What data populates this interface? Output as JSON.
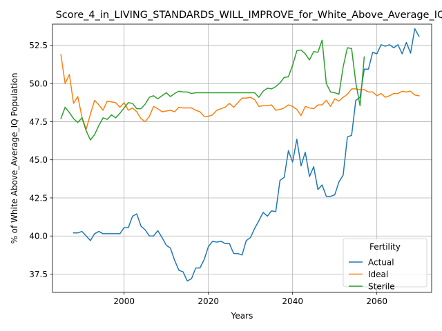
{
  "chart_data": {
    "type": "line",
    "title": "Score_4_in_LIVING_STANDARDS_WILL_IMPROVE_for_White_Above_Average_IQ",
    "xlabel": "Years",
    "ylabel": "% of White Above_Average_IQ Population",
    "xlim": [
      1983,
      2073
    ],
    "ylim": [
      36.3,
      53.9
    ],
    "xticks": [
      2000,
      2020,
      2040,
      2060
    ],
    "yticks": [
      37.5,
      40.0,
      42.5,
      45.0,
      47.5,
      50.0,
      52.5
    ],
    "xtick_labels": [
      "2000",
      "2020",
      "2040",
      "2060"
    ],
    "ytick_labels": [
      "37.5",
      "40.0",
      "42.5",
      "45.0",
      "47.5",
      "50.0",
      "52.5"
    ],
    "grid": true,
    "legend": {
      "title": "Fertility",
      "placement": "lower-right"
    },
    "series": [
      {
        "name": "Actual",
        "color": "#1f77b4",
        "x": [
          1988,
          1989,
          1990,
          1991,
          1992,
          1993,
          1994,
          1995,
          1996,
          1997,
          1998,
          1999,
          2000,
          2001,
          2002,
          2003,
          2004,
          2005,
          2006,
          2007,
          2008,
          2009,
          2010,
          2011,
          2012,
          2013,
          2014,
          2015,
          2016,
          2017,
          2018,
          2019,
          2020,
          2021,
          2022,
          2023,
          2024,
          2025,
          2026,
          2027,
          2028,
          2029,
          2030,
          2031,
          2032,
          2033,
          2034,
          2035,
          2036,
          2037,
          2038,
          2039,
          2040,
          2041,
          2042,
          2043,
          2044,
          2045,
          2046,
          2047,
          2048,
          2049,
          2050,
          2051,
          2052,
          2053,
          2054,
          2055,
          2056,
          2057,
          2058,
          2059,
          2060,
          2061,
          2062,
          2063,
          2064,
          2065,
          2066,
          2067,
          2068,
          2069,
          2070
        ],
        "values": [
          40.2,
          40.2,
          40.3,
          40.0,
          39.7,
          40.15,
          40.3,
          40.15,
          40.15,
          40.15,
          40.15,
          40.15,
          40.55,
          40.55,
          41.3,
          41.45,
          40.65,
          40.4,
          40.0,
          40.0,
          40.35,
          39.9,
          39.4,
          39.2,
          38.4,
          37.75,
          37.65,
          37.05,
          37.2,
          37.9,
          37.9,
          38.45,
          39.3,
          39.65,
          39.6,
          39.65,
          39.5,
          39.5,
          38.85,
          38.85,
          38.75,
          39.7,
          39.9,
          40.5,
          41.0,
          41.55,
          41.3,
          41.65,
          41.6,
          43.65,
          43.85,
          45.6,
          44.85,
          46.35,
          44.6,
          45.5,
          43.9,
          44.55,
          43.05,
          43.35,
          42.6,
          42.6,
          42.7,
          43.55,
          44.0,
          46.5,
          46.6,
          48.9,
          49.1,
          50.95,
          50.95,
          52.05,
          51.95,
          52.55,
          52.45,
          52.55,
          52.35,
          52.55,
          51.95,
          52.7,
          52.0,
          53.6,
          53.1
        ]
      },
      {
        "name": "Ideal",
        "color": "#ff7f0e",
        "x": [
          1985,
          1986,
          1987,
          1988,
          1989,
          1990,
          1991,
          1992,
          1993,
          1994,
          1995,
          1996,
          1997,
          1998,
          1999,
          2000,
          2001,
          2002,
          2003,
          2004,
          2005,
          2006,
          2007,
          2008,
          2009,
          2010,
          2011,
          2012,
          2013,
          2014,
          2015,
          2016,
          2017,
          2018,
          2019,
          2020,
          2021,
          2022,
          2023,
          2024,
          2025,
          2026,
          2027,
          2028,
          2029,
          2030,
          2031,
          2032,
          2033,
          2034,
          2035,
          2036,
          2037,
          2038,
          2039,
          2040,
          2041,
          2042,
          2043,
          2044,
          2045,
          2046,
          2047,
          2048,
          2049,
          2050,
          2051,
          2052,
          2053,
          2054,
          2055,
          2056,
          2057,
          2058,
          2059,
          2060,
          2061,
          2062,
          2063,
          2064,
          2065,
          2066,
          2067,
          2068,
          2069,
          2070
        ],
        "values": [
          51.9,
          50.0,
          50.6,
          48.7,
          49.15,
          47.8,
          47.0,
          48.0,
          48.9,
          48.6,
          48.25,
          48.85,
          48.8,
          48.75,
          48.45,
          48.75,
          48.25,
          48.4,
          48.15,
          47.7,
          47.5,
          47.85,
          48.5,
          48.35,
          48.15,
          48.2,
          48.25,
          48.15,
          48.45,
          48.4,
          48.4,
          48.4,
          48.25,
          48.15,
          47.85,
          47.85,
          47.95,
          48.25,
          48.35,
          48.45,
          48.7,
          48.45,
          48.75,
          49.05,
          49.05,
          49.1,
          48.95,
          48.5,
          48.55,
          48.55,
          48.6,
          48.25,
          48.3,
          48.4,
          48.6,
          48.5,
          48.3,
          47.9,
          48.5,
          48.4,
          48.35,
          48.6,
          48.6,
          48.9,
          48.5,
          49.0,
          48.85,
          49.1,
          49.3,
          49.65,
          49.65,
          49.6,
          49.6,
          49.45,
          49.45,
          49.2,
          49.35,
          49.1,
          49.2,
          49.35,
          49.35,
          49.5,
          49.45,
          49.5,
          49.25,
          49.2
        ]
      },
      {
        "name": "Sterile",
        "color": "#2ca02c",
        "x": [
          1985,
          1986,
          1987,
          1988,
          1989,
          1990,
          1991,
          1992,
          1993,
          1994,
          1995,
          1996,
          1997,
          1998,
          1999,
          2000,
          2001,
          2002,
          2003,
          2004,
          2005,
          2006,
          2007,
          2008,
          2009,
          2010,
          2011,
          2012,
          2013,
          2014,
          2015,
          2016,
          2017,
          2018,
          2019,
          2020,
          2021,
          2022,
          2023,
          2024,
          2025,
          2026,
          2027,
          2028,
          2029,
          2030,
          2031,
          2032,
          2033,
          2034,
          2035,
          2036,
          2037,
          2038,
          2039,
          2040,
          2041,
          2042,
          2043,
          2044,
          2045,
          2046,
          2047,
          2048,
          2049,
          2050,
          2051,
          2052,
          2053,
          2054,
          2055,
          2056,
          2057
        ],
        "values": [
          47.7,
          48.45,
          48.1,
          47.7,
          47.45,
          47.75,
          46.9,
          46.3,
          46.65,
          47.25,
          47.75,
          47.65,
          47.95,
          47.75,
          48.05,
          48.4,
          48.75,
          48.7,
          48.35,
          48.35,
          48.65,
          49.1,
          49.2,
          49.0,
          49.2,
          49.4,
          49.15,
          49.35,
          49.5,
          49.45,
          49.45,
          49.35,
          49.4,
          49.4,
          49.4,
          49.4,
          49.4,
          49.4,
          49.4,
          49.4,
          49.4,
          49.4,
          49.4,
          49.4,
          49.4,
          49.4,
          49.4,
          49.1,
          49.5,
          49.7,
          49.65,
          49.8,
          50.05,
          50.4,
          50.45,
          51.2,
          52.15,
          52.2,
          51.95,
          51.55,
          52.1,
          52.05,
          52.85,
          50.0,
          49.45,
          49.4,
          49.3,
          51.1,
          52.35,
          52.3,
          50.05,
          48.55,
          51.75
        ]
      }
    ]
  }
}
